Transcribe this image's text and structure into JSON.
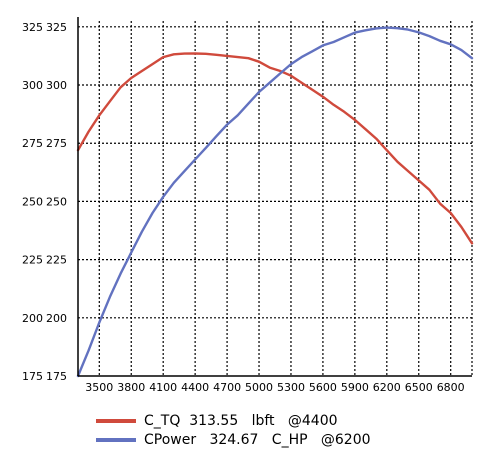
{
  "chart_data": {
    "type": "line",
    "xlim": [
      3300,
      7000
    ],
    "ylim": [
      175,
      327.5
    ],
    "x_ticks": [
      3500,
      3800,
      4100,
      4400,
      4700,
      5000,
      5300,
      5600,
      5900,
      6200,
      6500,
      6800
    ],
    "x_tick_labels": [
      "3500",
      "3800",
      "4100",
      "4400",
      "4700",
      "5000",
      "5300",
      "5600",
      "5900",
      "6200",
      "6500",
      "6800"
    ],
    "y_ticks": [
      175,
      200,
      225,
      250,
      275,
      300,
      325
    ],
    "y_tick_labels_outer": [
      "175",
      "200",
      "225",
      "250",
      "275",
      "300",
      "325"
    ],
    "y_tick_labels_inner": [
      "175",
      "200",
      "225",
      "250",
      "275",
      "300",
      "325"
    ],
    "grid": true,
    "grid_style": "dotted",
    "legend_position": "bottom",
    "series": [
      {
        "name": "C_TQ  313.55   lbft   @4400",
        "color": "#d04a3c",
        "points": [
          [
            3300,
            272
          ],
          [
            3400,
            280
          ],
          [
            3500,
            287
          ],
          [
            3600,
            293
          ],
          [
            3700,
            299
          ],
          [
            3800,
            303
          ],
          [
            3900,
            306
          ],
          [
            4000,
            309
          ],
          [
            4100,
            312
          ],
          [
            4200,
            313.2
          ],
          [
            4300,
            313.5
          ],
          [
            4400,
            313.55
          ],
          [
            4500,
            313.4
          ],
          [
            4600,
            313
          ],
          [
            4700,
            312.5
          ],
          [
            4800,
            312
          ],
          [
            4900,
            311.5
          ],
          [
            5000,
            310
          ],
          [
            5100,
            307.5
          ],
          [
            5200,
            306
          ],
          [
            5300,
            304
          ],
          [
            5400,
            301
          ],
          [
            5500,
            298
          ],
          [
            5600,
            295
          ],
          [
            5700,
            291.5
          ],
          [
            5800,
            288.5
          ],
          [
            5900,
            285
          ],
          [
            6000,
            281
          ],
          [
            6100,
            277
          ],
          [
            6200,
            272
          ],
          [
            6300,
            267
          ],
          [
            6400,
            263
          ],
          [
            6500,
            259
          ],
          [
            6600,
            255
          ],
          [
            6700,
            249
          ],
          [
            6800,
            245
          ],
          [
            6900,
            239
          ],
          [
            7000,
            232
          ]
        ]
      },
      {
        "name": "CPower   324.67   C_HP   @6200",
        "color": "#6272c0",
        "points": [
          [
            3300,
            175
          ],
          [
            3400,
            186
          ],
          [
            3500,
            198
          ],
          [
            3600,
            209
          ],
          [
            3700,
            219
          ],
          [
            3800,
            228
          ],
          [
            3900,
            237
          ],
          [
            4000,
            245
          ],
          [
            4100,
            252
          ],
          [
            4200,
            258
          ],
          [
            4300,
            263
          ],
          [
            4400,
            268
          ],
          [
            4500,
            273
          ],
          [
            4600,
            278
          ],
          [
            4700,
            283
          ],
          [
            4800,
            287
          ],
          [
            4900,
            292
          ],
          [
            5000,
            297
          ],
          [
            5100,
            301
          ],
          [
            5200,
            305
          ],
          [
            5300,
            309
          ],
          [
            5400,
            312
          ],
          [
            5500,
            314.5
          ],
          [
            5600,
            317
          ],
          [
            5700,
            318.5
          ],
          [
            5800,
            320.5
          ],
          [
            5900,
            322.5
          ],
          [
            6000,
            323.5
          ],
          [
            6100,
            324.3
          ],
          [
            6200,
            324.67
          ],
          [
            6300,
            324.4
          ],
          [
            6400,
            323.8
          ],
          [
            6500,
            322.6
          ],
          [
            6600,
            321
          ],
          [
            6700,
            319
          ],
          [
            6800,
            317.5
          ],
          [
            6900,
            315
          ],
          [
            7000,
            311.5
          ]
        ]
      }
    ]
  }
}
